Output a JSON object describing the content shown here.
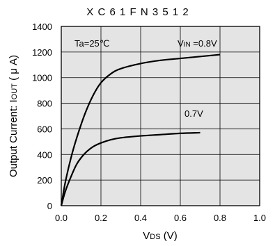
{
  "chart_data": {
    "type": "line",
    "title": "X C 6 1 F N 3 5 1 2",
    "xlabel_main": "V",
    "xlabel_sub": "DS",
    "xlabel_unit": " (V)",
    "ylabel_main": "Output Current: I",
    "ylabel_sub": "OUT",
    "ylabel_unit": " ( μ A)",
    "xlim": [
      0.0,
      1.0
    ],
    "ylim": [
      0,
      1400
    ],
    "xticks": [
      "0.0",
      "0.2",
      "0.4",
      "0.6",
      "0.8",
      "1.0"
    ],
    "yticks": [
      "0",
      "200",
      "400",
      "600",
      "800",
      "1000",
      "1200",
      "1400"
    ],
    "grid": true,
    "annotations": {
      "condition": "Ta=25℃",
      "vin_main": "V",
      "vin_sub": "IN",
      "vin_value": " =0.8V",
      "second_curve": "0.7V"
    },
    "series": [
      {
        "label": "0.8V",
        "x": [
          0.0,
          0.02,
          0.05,
          0.08,
          0.12,
          0.16,
          0.2,
          0.25,
          0.3,
          0.4,
          0.5,
          0.6,
          0.7,
          0.8
        ],
        "y": [
          0,
          180,
          380,
          540,
          720,
          860,
          960,
          1030,
          1070,
          1110,
          1135,
          1150,
          1165,
          1180
        ]
      },
      {
        "label": "0.7V",
        "x": [
          0.0,
          0.02,
          0.05,
          0.08,
          0.12,
          0.16,
          0.2,
          0.25,
          0.3,
          0.4,
          0.5,
          0.6,
          0.7
        ],
        "y": [
          0,
          110,
          230,
          330,
          410,
          460,
          490,
          515,
          530,
          545,
          555,
          565,
          570
        ]
      }
    ]
  }
}
